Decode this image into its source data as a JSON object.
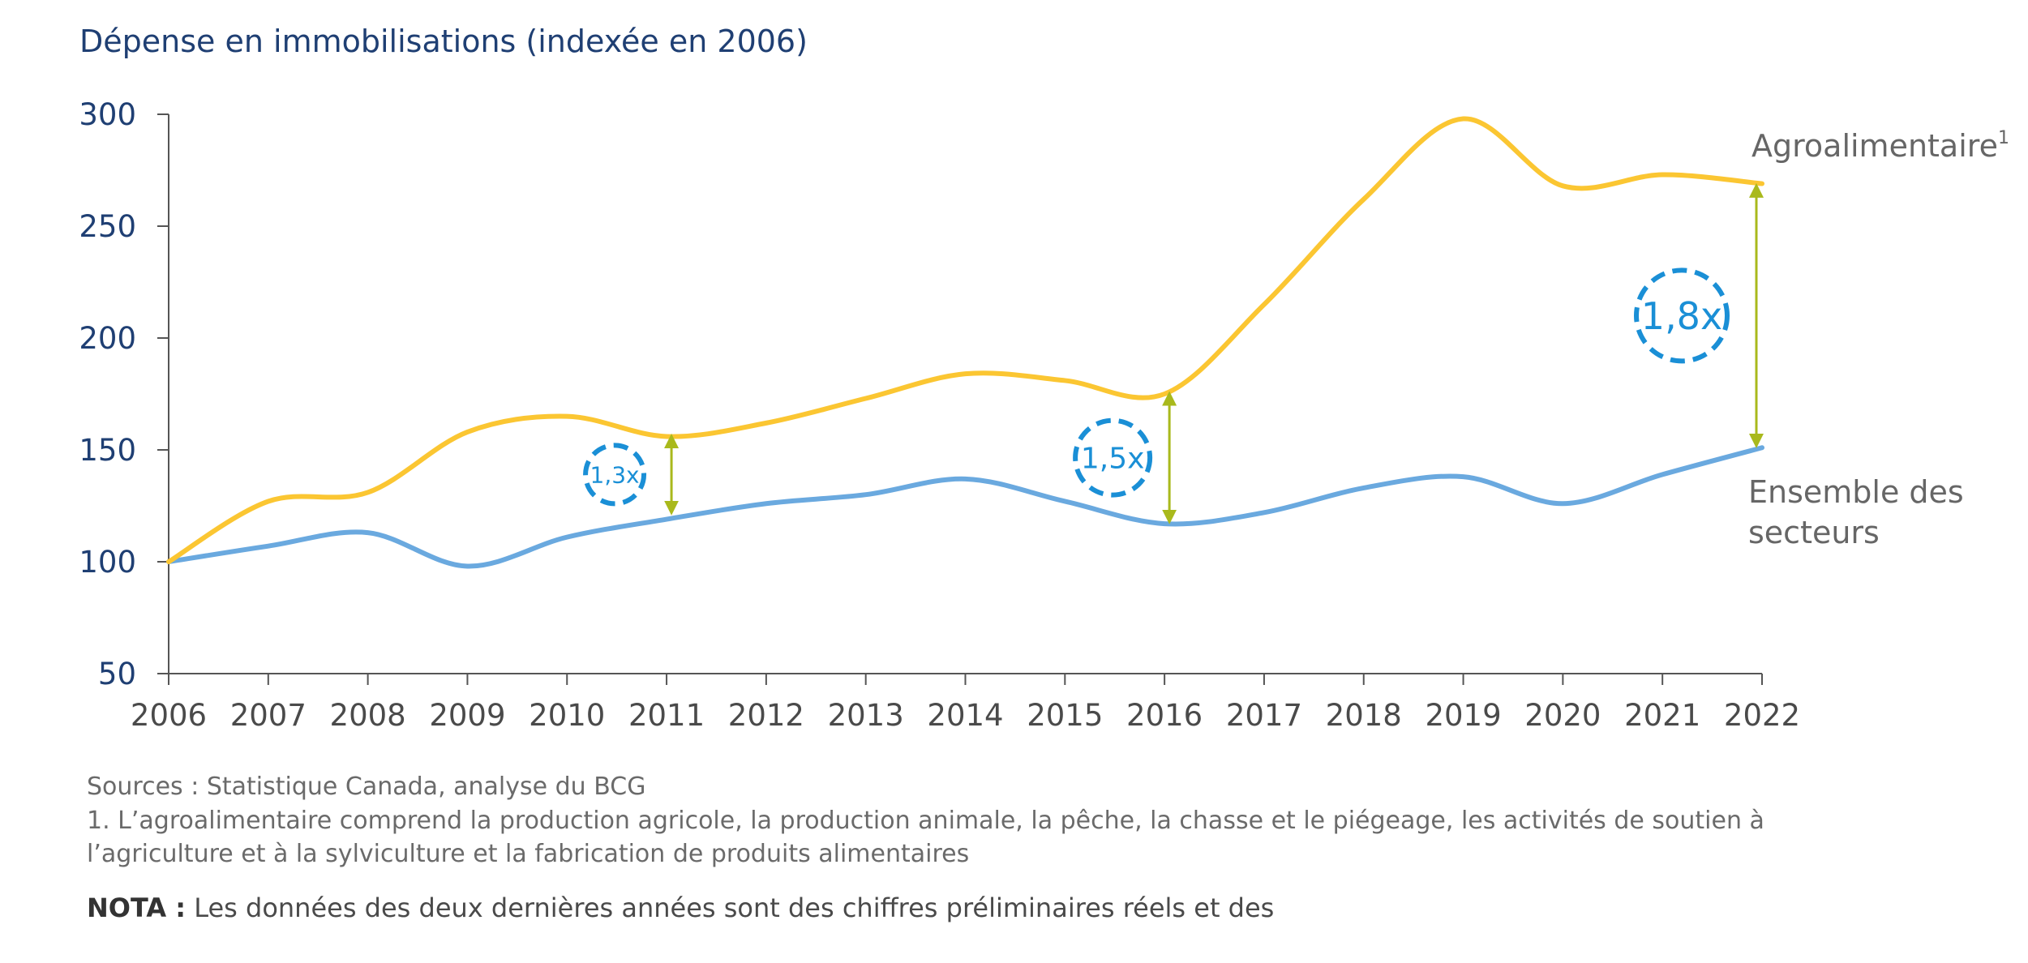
{
  "chart_data": {
    "type": "line",
    "title": "Dépense en immobilisations (indexée en 2006)",
    "x": [
      "2006",
      "2007",
      "2008",
      "2009",
      "2010",
      "2011",
      "2012",
      "2013",
      "2014",
      "2015",
      "2016",
      "2017",
      "2018",
      "2019",
      "2020",
      "2021",
      "2022"
    ],
    "series": [
      {
        "name": "Agroalimentaire",
        "name_superscript": "1",
        "color": "#fbc632",
        "values": [
          100,
          127,
          131,
          158,
          165,
          156,
          162,
          173,
          184,
          181,
          175,
          215,
          262,
          298,
          268,
          273,
          269
        ]
      },
      {
        "name": "Ensemble des secteurs",
        "name_lines": [
          "Ensemble des",
          "secteurs"
        ],
        "color": "#6aa9df",
        "values": [
          100,
          107,
          113,
          98,
          111,
          119,
          126,
          130,
          137,
          127,
          117,
          122,
          133,
          138,
          126,
          139,
          151
        ]
      }
    ],
    "ylim": [
      50,
      300
    ],
    "yticks": [
      300,
      250,
      200,
      150,
      100,
      50
    ],
    "xlabel": "",
    "ylabel": "",
    "grid": false,
    "annotations": [
      {
        "label": "1,3x",
        "year": "2011",
        "upper": 154,
        "lower": 124,
        "arrow_color": "#a9b91c",
        "circle_color": "#1a8fd6"
      },
      {
        "label": "1,5x",
        "year": "2016",
        "upper": 173,
        "lower": 120,
        "arrow_color": "#a9b91c",
        "circle_color": "#1a8fd6"
      },
      {
        "label": "1,8x",
        "year": "2022",
        "upper": 266,
        "lower": 154,
        "arrow_color": "#a9b91c",
        "circle_color": "#1a8fd6"
      }
    ]
  },
  "footer": {
    "sources": "Sources : Statistique Canada, analyse du BCG",
    "note1_line1": "1. L’agroalimentaire comprend la production agricole, la production animale, la pêche, la chasse et le piégeage, les activités de soutien à",
    "note1_line2": "l’agriculture et à la sylviculture et la fabrication de produits alimentaires",
    "nota_label": "NOTA :",
    "nota_text": " Les données des deux dernières années sont des chiffres préliminaires réels et des"
  }
}
